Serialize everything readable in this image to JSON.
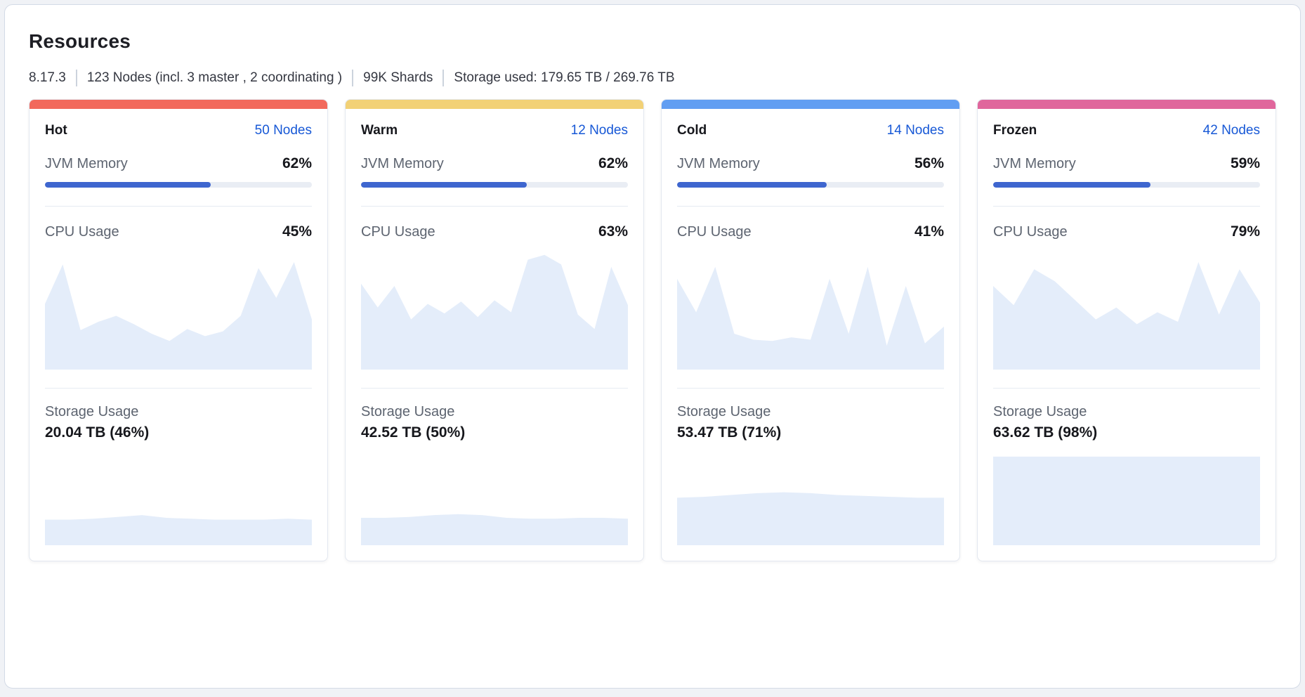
{
  "colors": {
    "progress_fill": "#3e66cf",
    "progress_track": "#e9edf4",
    "chart_fill": "#e4edfa",
    "link": "#1758d6",
    "hot_accent": "#f2695c",
    "warm_accent": "#f2d176",
    "cold_accent": "#619ef2",
    "frozen_accent": "#e0669c"
  },
  "panel": {
    "title": "Resources",
    "meta": {
      "version": "8.17.3",
      "nodes": "123 Nodes (incl. 3 master , 2 coordinating )",
      "shards": "99K Shards",
      "storage_used": "Storage used: 179.65 TB / 269.76 TB"
    }
  },
  "labels": {
    "jvm_memory": "JVM Memory",
    "cpu_usage": "CPU Usage",
    "storage_usage": "Storage Usage"
  },
  "tiers": [
    {
      "name": "Hot",
      "nodes_label": "50 Nodes",
      "accent": "#f2695c",
      "jvm_percent": "62%",
      "jvm_value": 62,
      "cpu_percent": "45%",
      "storage_value": "20.04 TB (46%)",
      "cpu_history": [
        55,
        88,
        33,
        40,
        45,
        38,
        30,
        24,
        34,
        28,
        32,
        45,
        85,
        60,
        90,
        42
      ],
      "storage_history": [
        28,
        28,
        29,
        31,
        33,
        30,
        29,
        28,
        28,
        28,
        29,
        28
      ]
    },
    {
      "name": "Warm",
      "nodes_label": "12 Nodes",
      "accent": "#f2d176",
      "jvm_percent": "62%",
      "jvm_value": 62,
      "cpu_percent": "63%",
      "storage_value": "42.52 TB (50%)",
      "cpu_history": [
        72,
        52,
        70,
        42,
        55,
        47,
        57,
        44,
        58,
        48,
        92,
        96,
        88,
        46,
        34,
        86,
        54
      ],
      "storage_history": [
        30,
        30,
        31,
        33,
        34,
        33,
        30,
        29,
        29,
        30,
        30,
        29
      ]
    },
    {
      "name": "Cold",
      "nodes_label": "14 Nodes",
      "accent": "#619ef2",
      "jvm_percent": "56%",
      "jvm_value": 56,
      "cpu_percent": "41%",
      "storage_value": "53.47 TB (71%)",
      "cpu_history": [
        76,
        48,
        86,
        30,
        25,
        24,
        27,
        25,
        76,
        30,
        86,
        20,
        70,
        22,
        36
      ],
      "storage_history": [
        52,
        53,
        55,
        57,
        58,
        57,
        55,
        54,
        53,
        52,
        52
      ]
    },
    {
      "name": "Frozen",
      "nodes_label": "42 Nodes",
      "accent": "#e0669c",
      "jvm_percent": "59%",
      "jvm_value": 59,
      "cpu_percent": "79%",
      "storage_value": "63.62 TB (98%)",
      "cpu_history": [
        70,
        54,
        84,
        74,
        58,
        42,
        52,
        38,
        48,
        40,
        90,
        46,
        84,
        56
      ],
      "storage_history": [
        97,
        97,
        97,
        97,
        97,
        97
      ]
    }
  ]
}
